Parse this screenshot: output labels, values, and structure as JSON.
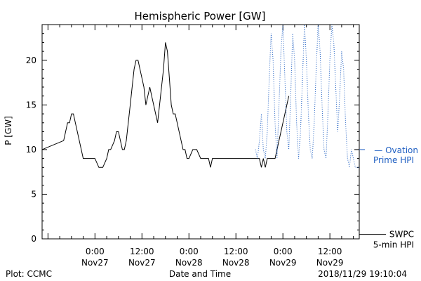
{
  "chart_data": {
    "type": "line",
    "title": "Hemispheric Power [GW]",
    "ylabel": "P [GW]",
    "xlabel": "Date and Time",
    "ylim": [
      0,
      24
    ],
    "y_ticks": [
      0,
      5,
      10,
      15,
      20
    ],
    "x_range_hours": [
      -13.5,
      67.5
    ],
    "x_ticks": [
      {
        "hour": 0,
        "line1": "0:00",
        "line2": "Nov27"
      },
      {
        "hour": 12,
        "line1": "12:00",
        "line2": "Nov27"
      },
      {
        "hour": 24,
        "line1": "0:00",
        "line2": "Nov28"
      },
      {
        "hour": 36,
        "line1": "12:00",
        "line2": "Nov28"
      },
      {
        "hour": 48,
        "line1": "0:00",
        "line2": "Nov29"
      },
      {
        "hour": 60,
        "line1": "12:00",
        "line2": "Nov29"
      }
    ],
    "series": [
      {
        "name": "SWPC 5-min HPI",
        "color": "#000000",
        "style": "solid",
        "points": [
          [
            -13.5,
            10.0
          ],
          [
            -8,
            11.0
          ],
          [
            -7.5,
            12.0
          ],
          [
            -7,
            13.0
          ],
          [
            -6.5,
            13.0
          ],
          [
            -6,
            14.0
          ],
          [
            -5.5,
            14.0
          ],
          [
            -5,
            13.0
          ],
          [
            -4.5,
            12.0
          ],
          [
            -4,
            11.0
          ],
          [
            -3.5,
            10.0
          ],
          [
            -3,
            9.0
          ],
          [
            -2.5,
            9.0
          ],
          [
            -2,
            9.0
          ],
          [
            -1,
            9.0
          ],
          [
            0,
            9.0
          ],
          [
            1,
            8.0
          ],
          [
            2,
            8.0
          ],
          [
            3,
            9.0
          ],
          [
            3.5,
            10.0
          ],
          [
            4,
            10.0
          ],
          [
            5,
            11.0
          ],
          [
            5.5,
            12.0
          ],
          [
            6,
            12.0
          ],
          [
            6.5,
            11.0
          ],
          [
            7,
            10.0
          ],
          [
            7.5,
            10.0
          ],
          [
            8,
            11.0
          ],
          [
            8.5,
            13.0
          ],
          [
            9,
            15.0
          ],
          [
            9.5,
            17.0
          ],
          [
            10,
            19.0
          ],
          [
            10.5,
            20.0
          ],
          [
            11,
            20.0
          ],
          [
            11.5,
            19.0
          ],
          [
            12,
            18.0
          ],
          [
            12.5,
            17.0
          ],
          [
            13,
            15.0
          ],
          [
            13.5,
            16.0
          ],
          [
            14,
            17.0
          ],
          [
            14.5,
            16.0
          ],
          [
            15,
            15.0
          ],
          [
            15.5,
            14.0
          ],
          [
            16,
            13.0
          ],
          [
            16.5,
            15.0
          ],
          [
            17,
            17.0
          ],
          [
            17.5,
            19.0
          ],
          [
            18,
            22.0
          ],
          [
            18.5,
            21.0
          ],
          [
            19,
            18.0
          ],
          [
            19.5,
            15.0
          ],
          [
            20,
            14.0
          ],
          [
            20.5,
            14.0
          ],
          [
            21,
            13.0
          ],
          [
            21.5,
            12.0
          ],
          [
            22,
            11.0
          ],
          [
            22.5,
            10.0
          ],
          [
            23,
            10.0
          ],
          [
            23.5,
            9.0
          ],
          [
            24,
            9.0
          ],
          [
            25,
            10.0
          ],
          [
            26,
            10.0
          ],
          [
            27,
            9.0
          ],
          [
            28,
            9.0
          ],
          [
            29,
            9.0
          ],
          [
            29.5,
            8.0
          ],
          [
            30,
            9.0
          ],
          [
            31,
            9.0
          ],
          [
            32,
            9.0
          ],
          [
            34,
            9.0
          ],
          [
            36,
            9.0
          ],
          [
            38,
            9.0
          ],
          [
            40,
            9.0
          ],
          [
            42,
            9.0
          ],
          [
            42.5,
            8.0
          ],
          [
            43,
            9.0
          ],
          [
            43.5,
            8.0
          ],
          [
            44,
            9.0
          ],
          [
            45,
            9.0
          ],
          [
            46,
            9.0
          ],
          [
            46.5,
            10.0
          ],
          [
            47,
            11.0
          ],
          [
            47.5,
            12.0
          ],
          [
            48,
            13.0
          ],
          [
            48.5,
            14.0
          ],
          [
            49,
            15.0
          ],
          [
            49.5,
            16.0
          ]
        ]
      },
      {
        "name": "Ovation Prime HPI",
        "color": "#1f5fc2",
        "style": "dotted",
        "points": [
          [
            41,
            10.0
          ],
          [
            41.5,
            9.0
          ],
          [
            42,
            11.0
          ],
          [
            42.5,
            14.0
          ],
          [
            43,
            10.0
          ],
          [
            43.5,
            9.0
          ],
          [
            44,
            12.0
          ],
          [
            44.5,
            18.0
          ],
          [
            45,
            23.0
          ],
          [
            45.5,
            20.0
          ],
          [
            46,
            13.0
          ],
          [
            46.5,
            9.0
          ],
          [
            47,
            15.0
          ],
          [
            47.5,
            21.0
          ],
          [
            48,
            24.0
          ],
          [
            48.5,
            18.0
          ],
          [
            49,
            12.0
          ],
          [
            49.5,
            10.0
          ],
          [
            50,
            16.0
          ],
          [
            50.5,
            23.0
          ],
          [
            51,
            20.0
          ],
          [
            51.5,
            13.0
          ],
          [
            52,
            9.0
          ],
          [
            52.5,
            12.0
          ],
          [
            53,
            18.0
          ],
          [
            53.5,
            24.0
          ],
          [
            54,
            20.0
          ],
          [
            54.5,
            14.0
          ],
          [
            55,
            10.0
          ],
          [
            55.5,
            9.0
          ],
          [
            56,
            13.0
          ],
          [
            56.5,
            19.0
          ],
          [
            57,
            24.0
          ],
          [
            57.5,
            21.0
          ],
          [
            58,
            15.0
          ],
          [
            58.5,
            10.0
          ],
          [
            59,
            9.0
          ],
          [
            59.5,
            14.0
          ],
          [
            60,
            20.0
          ],
          [
            60.5,
            24.0
          ],
          [
            61,
            22.0
          ],
          [
            61.5,
            17.0
          ],
          [
            62,
            12.0
          ],
          [
            62.5,
            16.0
          ],
          [
            63,
            21.0
          ],
          [
            63.5,
            19.0
          ],
          [
            64,
            13.0
          ],
          [
            64.5,
            9.0
          ],
          [
            65,
            8.0
          ],
          [
            65.5,
            10.0
          ],
          [
            66,
            9.0
          ],
          [
            66.5,
            8.0
          ],
          [
            67.5,
            8.0
          ]
        ]
      }
    ],
    "legend": [
      {
        "key": "ovation",
        "line1": "— Ovation",
        "line2": "Prime HPI",
        "color": "#1f5fc2",
        "value": 10
      },
      {
        "key": "swpc",
        "line1": "SWPC",
        "line2": "5-min HPI",
        "color": "#000000",
        "value": 0.5
      }
    ],
    "footer": {
      "left": "Plot: CCMC",
      "right": "2018/11/29 19:10:04"
    }
  }
}
